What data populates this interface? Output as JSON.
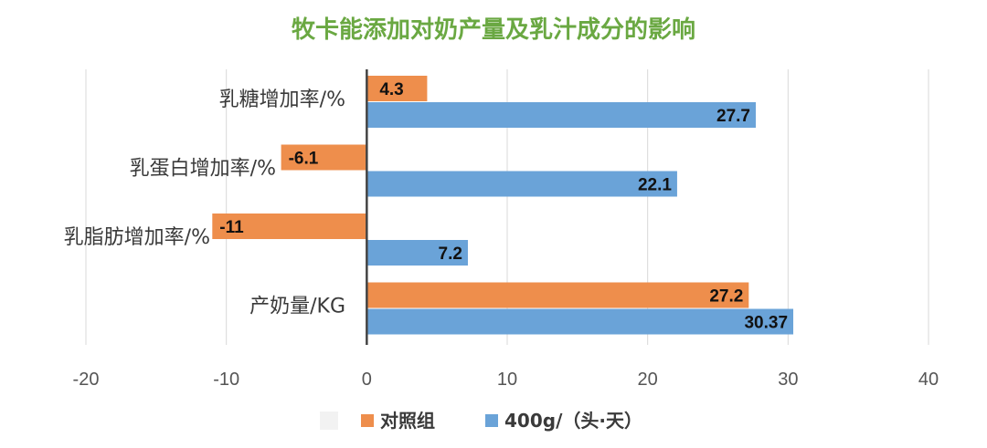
{
  "chart_data": {
    "type": "bar",
    "orientation": "horizontal",
    "title": "牧卡能添加对奶产量及乳汁成分的影响",
    "title_color": "#6aa842",
    "categories": [
      "乳糖增加率/%",
      "乳蛋白增加率/%",
      "乳脂肪增加率/%",
      "产奶量/KG"
    ],
    "series": [
      {
        "name": "对照组",
        "color": "#ee8e4c",
        "values": [
          4.3,
          -6.1,
          -11,
          27.2
        ]
      },
      {
        "name": "400g/（头·天）",
        "color": "#6aa3d8",
        "values": [
          27.7,
          22.1,
          7.2,
          30.37
        ]
      }
    ],
    "data_labels": [
      [
        "4.3",
        "-6.1",
        "-11",
        "27.2"
      ],
      [
        "27.7",
        "22.1",
        "7.2",
        "30.37"
      ]
    ],
    "xlim": [
      -20,
      40
    ],
    "xticks": [
      -20,
      -10,
      0,
      10,
      20,
      30,
      40
    ],
    "grid": true,
    "legend_position": "bottom"
  }
}
